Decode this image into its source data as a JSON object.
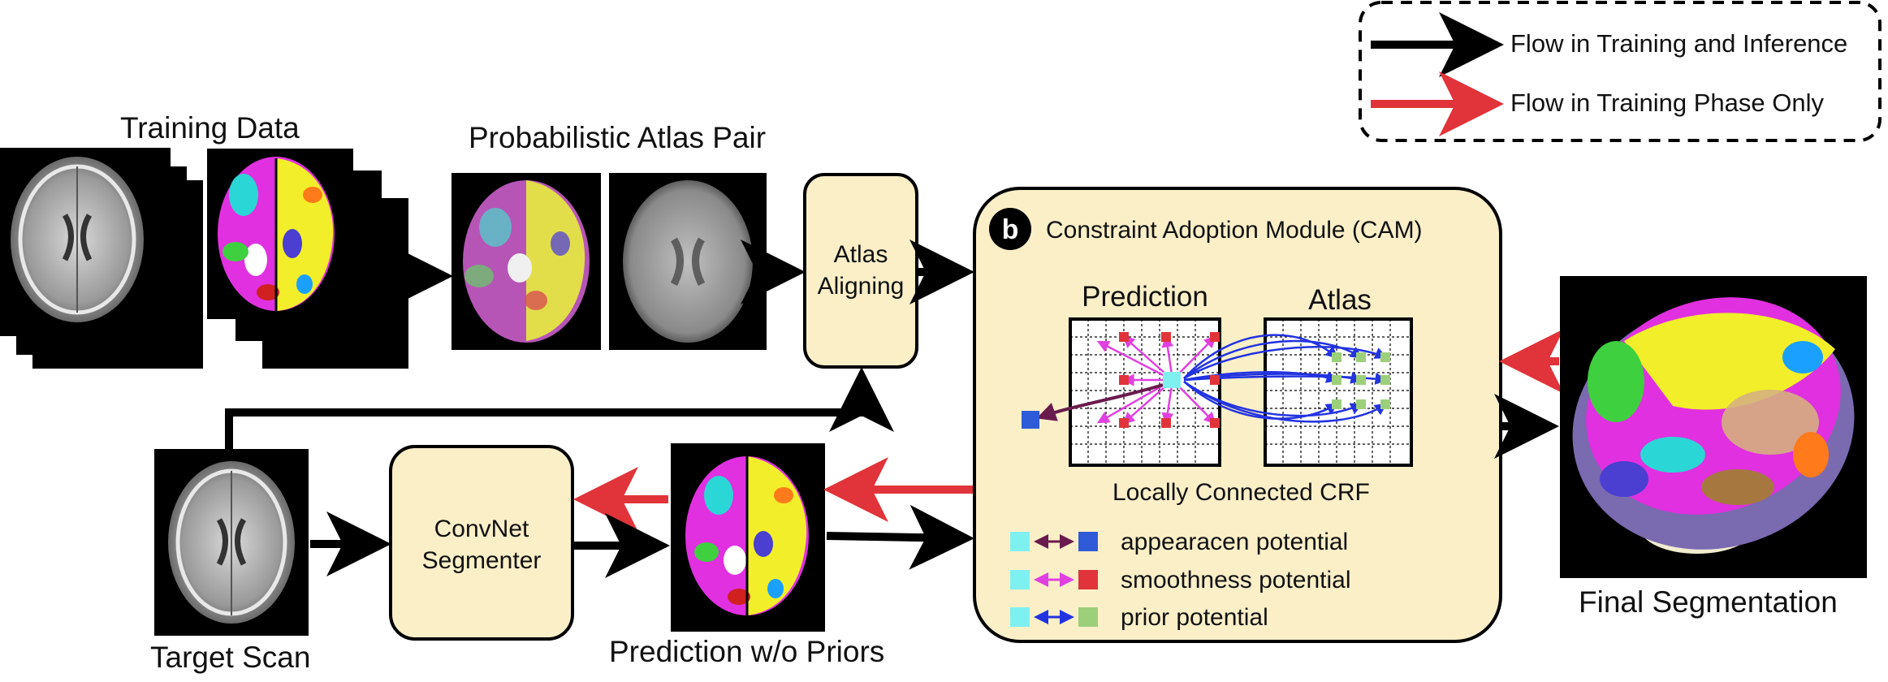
{
  "legend": {
    "items": [
      {
        "label": "Flow in Training and Inference",
        "color": "#000000"
      },
      {
        "label": "Flow in Training Phase Only",
        "color": "#e0343a"
      }
    ]
  },
  "labels": {
    "training_data": "Training Data",
    "atlas_pair": "Probabilistic Atlas Pair",
    "target_scan": "Target Scan",
    "prediction_wo_priors": "Prediction w/o Priors",
    "final_segmentation": "Final Segmentation"
  },
  "boxes": {
    "atlas_aligning": [
      "Atlas",
      "Aligning"
    ],
    "convnet_segmenter": [
      "ConvNet",
      "Segmenter"
    ]
  },
  "cam": {
    "badge": "b",
    "title": "Constraint Adoption Module (CAM)",
    "grid_prediction": "Prediction",
    "grid_atlas": "Atlas",
    "crf_label": "Locally Connected CRF",
    "potentials": [
      {
        "label": "appearacen potential",
        "square_color": "#2f5bd8",
        "arrow_color": "#6a1b4d"
      },
      {
        "label": "smoothness potential",
        "square_color": "#e0343a",
        "arrow_color": "#e040e0"
      },
      {
        "label": "prior potential",
        "square_color": "#9ccf7a",
        "arrow_color": "#2233e0"
      }
    ],
    "center_color": "#7ff0f0"
  },
  "colors": {
    "box_fill": "#fbefc8",
    "arrow_black": "#000000",
    "arrow_red": "#e0343a",
    "scan_bg": "#000000"
  },
  "icons": {
    "legend_frame": "dashed-rounded-rect",
    "badge": "black-circle-letter"
  }
}
